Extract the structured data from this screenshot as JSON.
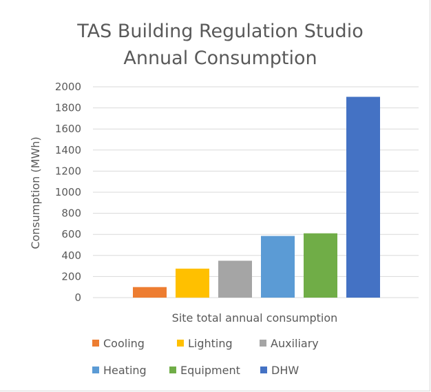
{
  "chart_data": {
    "type": "bar",
    "title": [
      "TAS Building Regulation Studio",
      "Annual Consumption"
    ],
    "xlabel": "",
    "ylabel": "Consumption (MWh)",
    "categories": [
      "Site total annual consumption"
    ],
    "ylim": [
      0,
      2000
    ],
    "yticks": [
      "0",
      "200",
      "400",
      "600",
      "800",
      "1000",
      "1200",
      "1400",
      "1600",
      "1800",
      "2000"
    ],
    "grid": true,
    "legend_position": "bottom",
    "series": [
      {
        "name": "Cooling",
        "values": [
          100
        ],
        "color": "#ED7D31"
      },
      {
        "name": "Lighting",
        "values": [
          275
        ],
        "color": "#FFC000"
      },
      {
        "name": "Auxiliary",
        "values": [
          350
        ],
        "color": "#A5A5A5"
      },
      {
        "name": "Heating",
        "values": [
          585
        ],
        "color": "#5B9BD5"
      },
      {
        "name": "Equipment",
        "values": [
          610
        ],
        "color": "#70AD47"
      },
      {
        "name": "DHW",
        "values": [
          1905
        ],
        "color": "#4472C4"
      }
    ]
  }
}
